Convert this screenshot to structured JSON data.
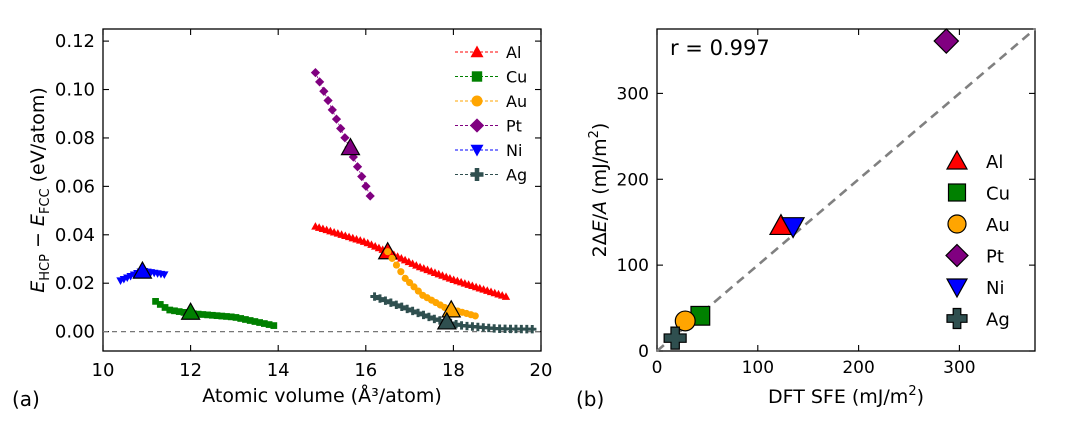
{
  "chart_data": [
    {
      "panel": "(a)",
      "type": "scatter",
      "xlabel": "Atomic volume (Å³/atom)",
      "ylabel": "E_HCP − E_FCC (eV/atom)",
      "ylabel_parts": {
        "e1": "E",
        "s1": "HCP",
        "minus": " − ",
        "e2": "E",
        "s2": "FCC",
        "unit": " (eV/atom)"
      },
      "xlim": [
        10,
        20
      ],
      "ylim": [
        -0.008,
        0.125
      ],
      "xticks": [
        10,
        12,
        14,
        16,
        18,
        20
      ],
      "yticks": [
        0.0,
        0.02,
        0.04,
        0.06,
        0.08,
        0.1,
        0.12
      ],
      "ytick_labels": [
        "0.00",
        "0.02",
        "0.04",
        "0.06",
        "0.08",
        "0.10",
        "0.12"
      ],
      "legend_position": "top-right",
      "series": [
        {
          "name": "Al",
          "color": "#ff0000",
          "marker": "triangle-up",
          "x_range": [
            14.85,
            19.2
          ],
          "n": 52,
          "curve": [
            [
              14.85,
              0.0435
            ],
            [
              16.0,
              0.037
            ],
            [
              16.5,
              0.033
            ],
            [
              17.2,
              0.027
            ],
            [
              18.0,
              0.0215
            ],
            [
              19.2,
              0.0145
            ]
          ],
          "eq": [
            16.5,
            0.033
          ]
        },
        {
          "name": "Cu",
          "color": "#008000",
          "marker": "square",
          "x_range": [
            11.2,
            13.9
          ],
          "n": 26,
          "curve": [
            [
              11.2,
              0.0125
            ],
            [
              11.5,
              0.009
            ],
            [
              12.0,
              0.0075
            ],
            [
              13.0,
              0.006
            ],
            [
              13.9,
              0.0025
            ]
          ],
          "eq": [
            12.0,
            0.008
          ]
        },
        {
          "name": "Au",
          "color": "#ffa500",
          "marker": "circle",
          "x_range": [
            16.5,
            18.5
          ],
          "n": 21,
          "curve": [
            [
              16.5,
              0.033
            ],
            [
              16.9,
              0.022
            ],
            [
              17.3,
              0.015
            ],
            [
              17.8,
              0.01
            ],
            [
              18.5,
              0.0065
            ]
          ],
          "eq": [
            17.95,
            0.009
          ]
        },
        {
          "name": "Pt",
          "color": "#800080",
          "marker": "diamond",
          "x_range": [
            14.85,
            16.1
          ],
          "n": 14,
          "curve": [
            [
              14.85,
              0.107
            ],
            [
              15.2,
              0.093
            ],
            [
              15.6,
              0.077
            ],
            [
              16.1,
              0.056
            ]
          ],
          "eq": [
            15.65,
            0.076
          ]
        },
        {
          "name": "Ni",
          "color": "#0000ff",
          "marker": "triangle-down",
          "x_range": [
            10.4,
            11.4
          ],
          "n": 14,
          "curve": [
            [
              10.4,
              0.021
            ],
            [
              10.9,
              0.025
            ],
            [
              11.4,
              0.0235
            ]
          ],
          "eq": [
            10.9,
            0.025
          ]
        },
        {
          "name": "Ag",
          "color": "#2f4f4f",
          "marker": "plus",
          "x_range": [
            16.2,
            19.8
          ],
          "n": 30,
          "curve": [
            [
              16.2,
              0.0145
            ],
            [
              17.0,
              0.009
            ],
            [
              17.6,
              0.005
            ],
            [
              18.2,
              0.0025
            ],
            [
              19.0,
              0.0012
            ],
            [
              19.8,
              0.001
            ]
          ],
          "eq": [
            17.85,
            0.004
          ]
        }
      ],
      "reference_line": {
        "y": 0.0,
        "style": "dashed",
        "color": "#777777"
      }
    },
    {
      "panel": "(b)",
      "type": "scatter",
      "xlabel": "DFT SFE (mJ/m²)",
      "xlabel_parts": {
        "main": "DFT SFE  (mJ/m",
        "sup": "2",
        "end": ")"
      },
      "ylabel": "2ΔE/A  (mJ/m²)",
      "ylabel_parts": {
        "pre": "2Δ",
        "e": "E",
        "slash": "/",
        "a": "A",
        "units": "  (mJ/m",
        "sup": "2",
        "end": ")"
      },
      "xlim": [
        0,
        375
      ],
      "ylim": [
        0,
        375
      ],
      "xticks": [
        0,
        100,
        200,
        300
      ],
      "yticks": [
        0,
        100,
        200,
        300
      ],
      "annotation": "r = 0.997",
      "diagonal": {
        "from": [
          0,
          0
        ],
        "to": [
          375,
          375
        ],
        "style": "dashed",
        "color": "#808080"
      },
      "legend_position": "right",
      "points": [
        {
          "name": "Al",
          "x": 123,
          "y": 146,
          "color": "#ff0000",
          "marker": "triangle-up"
        },
        {
          "name": "Cu",
          "x": 43,
          "y": 41,
          "color": "#008000",
          "marker": "square"
        },
        {
          "name": "Au",
          "x": 28,
          "y": 35,
          "color": "#ffa500",
          "marker": "circle"
        },
        {
          "name": "Pt",
          "x": 287,
          "y": 361,
          "color": "#800080",
          "marker": "diamond"
        },
        {
          "name": "Ni",
          "x": 135,
          "y": 145,
          "color": "#0000ff",
          "marker": "triangle-down"
        },
        {
          "name": "Ag",
          "x": 18,
          "y": 15,
          "color": "#2f4f4f",
          "marker": "plus"
        }
      ]
    }
  ]
}
